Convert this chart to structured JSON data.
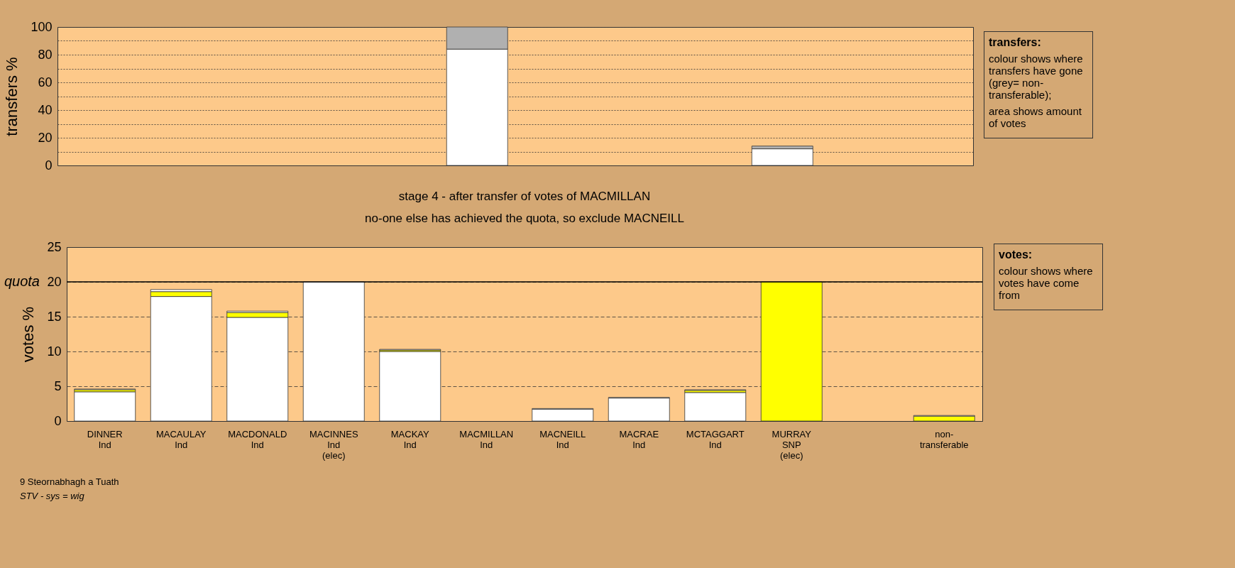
{
  "chart_data": [
    {
      "type": "bar",
      "stacked": true,
      "ylabel": "transfers %",
      "categories": [
        null,
        null,
        null,
        null,
        null,
        null,
        null,
        null,
        null,
        null,
        null,
        null
      ],
      "series": [
        {
          "color": "#ffffff",
          "values": [
            0,
            0,
            0,
            0,
            0,
            84,
            0,
            0,
            0,
            12,
            null,
            0
          ]
        },
        {
          "color": "#b0b0b0",
          "values": [
            0,
            0,
            0,
            0,
            0,
            16,
            0,
            0,
            0,
            2,
            null,
            0
          ]
        }
      ],
      "ylim": [
        0,
        100
      ],
      "yticks": [
        0,
        {
          "value": 10,
          "label": null
        },
        20,
        {
          "value": 30,
          "label": null
        },
        40,
        {
          "value": 50,
          "label": null
        },
        60,
        {
          "value": 70,
          "label": null
        },
        80,
        {
          "value": 90,
          "label": null
        },
        100
      ],
      "grid": "y",
      "line_style": "dotted",
      "tick_labels": "y",
      "annotations": [
        "transfers:\ncolour shows where transfers have gone (grey= non-transferable);\narea shows amount of votes"
      ]
    },
    {
      "type": "bar",
      "stacked": true,
      "title": "stage 4 - after transfer of votes of MACMILLAN",
      "subtitle": "no-one else has achieved the quota, so exclude MACNEILL",
      "ylabel": "votes %",
      "categories": [
        "DINNER\nInd",
        "MACAULAY\nInd",
        "MACDONALD\nInd",
        "MACINNES\nInd\n(elec)",
        "MACKAY\nInd",
        "MACMILLAN\nInd",
        "MACNEILL\nInd",
        "MACRAE\nInd",
        "MCTAGGART\nInd",
        "MURRAY\nSNP\n(elec)",
        null,
        "non-\ntransferable"
      ],
      "series": [
        {
          "color": "#ffffff",
          "values": [
            4.2,
            17.9,
            14.9,
            20,
            10,
            0,
            1.7,
            3.3,
            4.1,
            0,
            null,
            0
          ]
        },
        {
          "color": "#ffff00",
          "values": [
            0.3,
            0.7,
            0.7,
            0,
            0.2,
            0,
            0,
            0,
            0.3,
            20,
            null,
            0.7
          ]
        },
        {
          "color": "#ffffff",
          "values": [
            0.1,
            0.3,
            0.2,
            0,
            0.1,
            0,
            0.1,
            0.1,
            0.1,
            0,
            null,
            0.1
          ]
        }
      ],
      "ylim": [
        0,
        25
      ],
      "yticks": [
        0,
        5,
        10,
        15,
        20,
        25
      ],
      "grid": "y",
      "line_style": "dashed",
      "ref_lines": [
        {
          "axis": "y",
          "value": 20,
          "label": "quota"
        }
      ],
      "annotations": [
        "votes:\ncolour shows where votes have come from",
        "9 Steornabhagh a Tuath",
        "STV - sys = wig"
      ]
    }
  ]
}
